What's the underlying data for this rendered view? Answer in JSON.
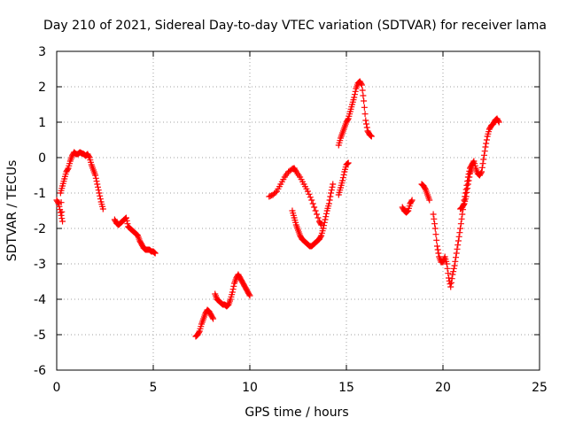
{
  "chart_data": {
    "type": "scatter",
    "title": "Day 210 of 2021, Sidereal Day-to-day VTEC variation (SDTVAR) for receiver lama",
    "xlabel": "GPS time / hours",
    "ylabel": "SDTVAR / TECUs",
    "xlim": [
      0,
      25
    ],
    "ylim": [
      -6,
      3
    ],
    "xticks": [
      0,
      5,
      10,
      15,
      20,
      25
    ],
    "yticks": [
      -6,
      -5,
      -4,
      -3,
      -2,
      -1,
      0,
      1,
      2,
      3
    ],
    "xtick_labels": [
      "0",
      "5",
      "10",
      "15",
      "20",
      "25"
    ],
    "ytick_labels": [
      "-6",
      "-5",
      "-4",
      "-3",
      "-2",
      "-1",
      "0",
      "1",
      "2",
      "3"
    ],
    "grid": true,
    "marker": "plus",
    "series": [
      {
        "name": "receiver lama",
        "color": "#ff0000",
        "segments": [
          [
            [
              0.0,
              -1.2
            ],
            [
              0.1,
              -1.3
            ],
            [
              0.2,
              -1.55
            ],
            [
              0.3,
              -1.8
            ],
            [
              0.2,
              -1.0
            ],
            [
              0.3,
              -0.8
            ],
            [
              0.4,
              -0.6
            ],
            [
              0.5,
              -0.4
            ],
            [
              0.6,
              -0.3
            ],
            [
              0.7,
              -0.1
            ],
            [
              0.8,
              0.05
            ],
            [
              0.9,
              0.15
            ],
            [
              1.0,
              0.1
            ],
            [
              1.1,
              0.1
            ],
            [
              1.2,
              0.15
            ],
            [
              1.3,
              0.12
            ],
            [
              1.4,
              0.1
            ],
            [
              1.5,
              0.05
            ],
            [
              1.6,
              0.1
            ],
            [
              1.7,
              0.0
            ],
            [
              1.8,
              -0.2
            ],
            [
              1.9,
              -0.35
            ],
            [
              2.0,
              -0.5
            ],
            [
              2.1,
              -0.75
            ],
            [
              2.2,
              -1.0
            ],
            [
              2.3,
              -1.25
            ],
            [
              2.4,
              -1.45
            ]
          ],
          [
            [
              3.0,
              -1.75
            ],
            [
              3.1,
              -1.85
            ],
            [
              3.2,
              -1.9
            ],
            [
              3.3,
              -1.85
            ],
            [
              3.4,
              -1.8
            ],
            [
              3.5,
              -1.75
            ],
            [
              3.6,
              -1.7
            ],
            [
              3.7,
              -1.95
            ],
            [
              3.8,
              -2.0
            ],
            [
              3.9,
              -2.05
            ],
            [
              4.0,
              -2.1
            ],
            [
              4.1,
              -2.15
            ],
            [
              4.2,
              -2.2
            ],
            [
              4.3,
              -2.35
            ],
            [
              4.4,
              -2.45
            ],
            [
              4.5,
              -2.55
            ],
            [
              4.6,
              -2.6
            ],
            [
              4.7,
              -2.6
            ],
            [
              4.8,
              -2.6
            ],
            [
              4.9,
              -2.65
            ],
            [
              5.0,
              -2.65
            ],
            [
              5.1,
              -2.7
            ]
          ],
          [
            [
              7.2,
              -5.05
            ],
            [
              7.3,
              -5.0
            ],
            [
              7.4,
              -4.9
            ],
            [
              7.5,
              -4.7
            ],
            [
              7.6,
              -4.55
            ],
            [
              7.7,
              -4.4
            ],
            [
              7.8,
              -4.3
            ],
            [
              7.9,
              -4.35
            ],
            [
              8.0,
              -4.45
            ],
            [
              8.1,
              -4.55
            ]
          ],
          [
            [
              8.2,
              -3.85
            ],
            [
              8.3,
              -4.0
            ],
            [
              8.4,
              -4.05
            ],
            [
              8.5,
              -4.1
            ],
            [
              8.6,
              -4.15
            ],
            [
              8.7,
              -4.15
            ],
            [
              8.8,
              -4.2
            ],
            [
              8.9,
              -4.15
            ],
            [
              9.0,
              -4.0
            ],
            [
              9.1,
              -3.8
            ],
            [
              9.2,
              -3.55
            ],
            [
              9.3,
              -3.4
            ],
            [
              9.4,
              -3.3
            ],
            [
              9.5,
              -3.4
            ],
            [
              9.6,
              -3.5
            ],
            [
              9.7,
              -3.6
            ],
            [
              9.8,
              -3.7
            ],
            [
              9.9,
              -3.8
            ],
            [
              10.0,
              -3.9
            ]
          ],
          [
            [
              11.0,
              -1.1
            ],
            [
              11.2,
              -1.05
            ],
            [
              11.4,
              -0.95
            ],
            [
              11.6,
              -0.75
            ],
            [
              11.8,
              -0.55
            ],
            [
              12.0,
              -0.4
            ],
            [
              12.2,
              -0.32
            ],
            [
              12.3,
              -0.3
            ],
            [
              12.4,
              -0.4
            ],
            [
              12.6,
              -0.55
            ],
            [
              12.8,
              -0.75
            ],
            [
              13.0,
              -0.95
            ],
            [
              13.2,
              -1.2
            ],
            [
              13.4,
              -1.5
            ],
            [
              13.6,
              -1.8
            ],
            [
              13.7,
              -1.9
            ]
          ],
          [
            [
              12.2,
              -1.5
            ],
            [
              12.3,
              -1.7
            ],
            [
              12.4,
              -1.9
            ],
            [
              12.5,
              -2.05
            ],
            [
              12.6,
              -2.2
            ],
            [
              12.7,
              -2.3
            ],
            [
              12.8,
              -2.35
            ],
            [
              12.9,
              -2.4
            ],
            [
              13.0,
              -2.45
            ],
            [
              13.1,
              -2.5
            ],
            [
              13.2,
              -2.5
            ],
            [
              13.3,
              -2.45
            ],
            [
              13.4,
              -2.4
            ],
            [
              13.5,
              -2.35
            ],
            [
              13.6,
              -2.3
            ],
            [
              13.7,
              -2.2
            ],
            [
              13.8,
              -2.0
            ],
            [
              13.9,
              -1.75
            ],
            [
              14.0,
              -1.5
            ],
            [
              14.1,
              -1.3
            ],
            [
              14.2,
              -1.0
            ],
            [
              14.3,
              -0.75
            ]
          ],
          [
            [
              14.6,
              -1.05
            ],
            [
              14.7,
              -0.85
            ],
            [
              14.8,
              -0.65
            ],
            [
              14.9,
              -0.4
            ],
            [
              15.0,
              -0.2
            ],
            [
              15.1,
              -0.15
            ]
          ],
          [
            [
              14.6,
              0.35
            ],
            [
              14.7,
              0.55
            ],
            [
              14.8,
              0.7
            ],
            [
              14.9,
              0.85
            ],
            [
              15.0,
              1.0
            ],
            [
              15.1,
              1.1
            ],
            [
              15.2,
              1.3
            ],
            [
              15.3,
              1.5
            ],
            [
              15.4,
              1.7
            ],
            [
              15.5,
              1.95
            ],
            [
              15.6,
              2.1
            ],
            [
              15.7,
              2.15
            ],
            [
              15.8,
              2.05
            ],
            [
              15.9,
              1.6
            ],
            [
              16.0,
              1.05
            ],
            [
              16.1,
              0.75
            ],
            [
              16.2,
              0.65
            ],
            [
              16.3,
              0.6
            ]
          ],
          [
            [
              17.9,
              -1.4
            ],
            [
              18.0,
              -1.5
            ],
            [
              18.1,
              -1.55
            ],
            [
              18.2,
              -1.5
            ],
            [
              18.3,
              -1.3
            ],
            [
              18.4,
              -1.2
            ]
          ],
          [
            [
              18.9,
              -0.75
            ],
            [
              19.0,
              -0.8
            ],
            [
              19.1,
              -0.9
            ],
            [
              19.2,
              -1.05
            ],
            [
              19.3,
              -1.2
            ]
          ],
          [
            [
              19.5,
              -1.6
            ],
            [
              19.6,
              -2.0
            ],
            [
              19.7,
              -2.5
            ],
            [
              19.8,
              -2.8
            ],
            [
              19.9,
              -2.95
            ],
            [
              20.0,
              -2.95
            ],
            [
              20.1,
              -2.8
            ],
            [
              20.2,
              -3.0
            ],
            [
              20.3,
              -3.4
            ],
            [
              20.4,
              -3.65
            ],
            [
              20.5,
              -3.3
            ],
            [
              20.6,
              -3.05
            ],
            [
              20.7,
              -2.7
            ],
            [
              20.8,
              -2.35
            ],
            [
              20.9,
              -2.0
            ],
            [
              21.0,
              -1.6
            ],
            [
              21.1,
              -1.2
            ],
            [
              21.2,
              -0.9
            ],
            [
              21.3,
              -0.55
            ],
            [
              21.4,
              -0.3
            ],
            [
              21.5,
              -0.2
            ],
            [
              21.6,
              -0.1
            ],
            [
              21.7,
              -0.3
            ],
            [
              21.8,
              -0.45
            ],
            [
              21.9,
              -0.5
            ],
            [
              22.0,
              -0.4
            ],
            [
              22.1,
              -0.05
            ],
            [
              22.2,
              0.3
            ],
            [
              22.3,
              0.6
            ],
            [
              22.4,
              0.8
            ],
            [
              22.5,
              0.9
            ],
            [
              22.6,
              0.95
            ],
            [
              22.7,
              1.05
            ],
            [
              22.8,
              1.1
            ],
            [
              22.9,
              1.0
            ]
          ],
          [
            [
              20.9,
              -1.45
            ],
            [
              21.0,
              -1.4
            ],
            [
              21.1,
              -1.3
            ],
            [
              21.2,
              -1.1
            ],
            [
              21.3,
              -0.75
            ],
            [
              21.4,
              -0.45
            ],
            [
              21.5,
              -0.3
            ]
          ]
        ]
      }
    ]
  }
}
